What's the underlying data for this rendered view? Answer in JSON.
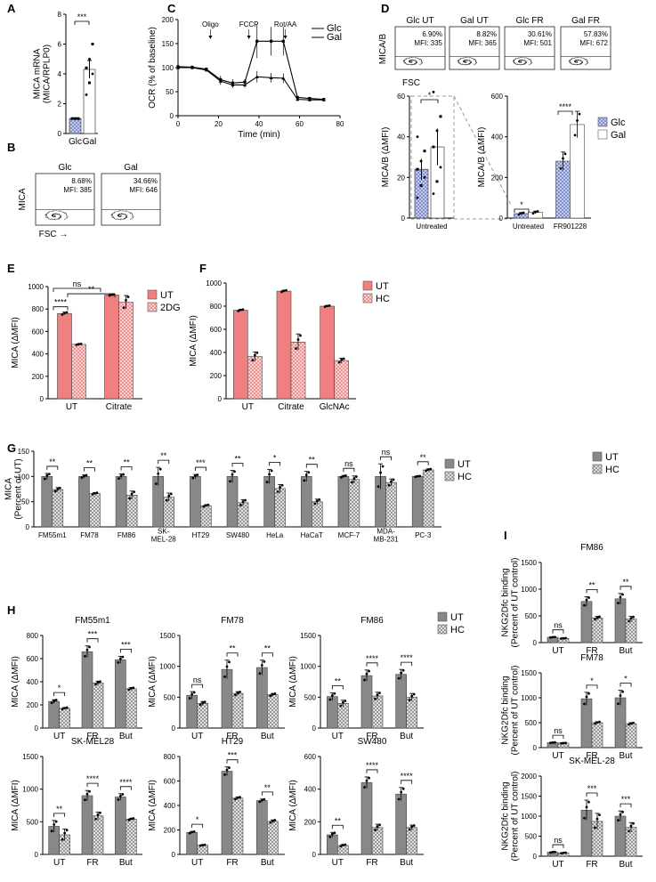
{
  "colors": {
    "red": "#f08080",
    "grey": "#888888",
    "blue": "#a9b4e0",
    "white": "#ffffff",
    "black": "#000000"
  },
  "chart_data": [
    {
      "panel": "A",
      "type": "bar",
      "categories": [
        "Glc",
        "Gal"
      ],
      "values": [
        1.0,
        4.3
      ],
      "errors": [
        0.05,
        0.6
      ],
      "points": [
        [
          1,
          1,
          1,
          1,
          1,
          1
        ],
        [
          2.6,
          3.4,
          4.0,
          4.4,
          5.0,
          6.0
        ]
      ],
      "ylabel": "MICA mRNA\n(MICA/RPLP0)",
      "ylim": [
        0,
        8
      ],
      "yticks": [
        0,
        2,
        4,
        6,
        8
      ],
      "fills": [
        "blue",
        "white"
      ],
      "sig": [
        {
          "from": 0,
          "to": 1,
          "label": "***"
        }
      ]
    },
    {
      "panel": "C",
      "type": "line",
      "x": [
        0,
        7,
        14,
        21,
        27,
        33,
        39,
        46,
        52,
        59,
        65,
        72
      ],
      "series": [
        {
          "name": "Glc",
          "values": [
            102,
            101,
            97,
            75,
            68,
            70,
            155,
            155,
            155,
            38,
            36,
            34
          ],
          "errors": [
            2,
            2,
            3,
            8,
            8,
            6,
            35,
            30,
            30,
            3,
            3,
            3
          ]
        },
        {
          "name": "Gal",
          "values": [
            100,
            100,
            95,
            72,
            64,
            64,
            81,
            79,
            78,
            34,
            33,
            33
          ],
          "errors": [
            2,
            2,
            3,
            8,
            6,
            6,
            12,
            10,
            10,
            3,
            3,
            3
          ]
        }
      ],
      "annotations": [
        {
          "x": 16,
          "label": "Oligo"
        },
        {
          "x": 35,
          "label": "FCCP"
        },
        {
          "x": 53,
          "label": "Rot/AA"
        }
      ],
      "xlabel": "Time (min)",
      "ylabel": "OCR (% of baseline)",
      "xlim": [
        0,
        80
      ],
      "xticks": [
        0,
        20,
        40,
        60,
        80
      ],
      "ylim": [
        0,
        200
      ],
      "yticks": [
        0,
        50,
        100,
        150,
        200
      ],
      "legend": "top-right"
    },
    {
      "panel": "D-left",
      "type": "bar",
      "group_label": "Untreated",
      "categories": [
        "Glc",
        "Gal"
      ],
      "values": [
        24,
        35
      ],
      "errors": [
        5,
        9
      ],
      "points": [
        [
          10,
          16,
          20,
          24,
          28,
          33,
          40
        ],
        [
          12,
          18,
          25,
          35,
          43,
          50,
          62
        ]
      ],
      "ylabel": "MICA/B (ΔMFI)",
      "ylim": [
        0,
        60
      ],
      "yticks": [
        0,
        20,
        40,
        60
      ],
      "fills": [
        "blue",
        "white"
      ],
      "sig": [
        {
          "from": 0,
          "to": 1,
          "label": "*"
        }
      ]
    },
    {
      "panel": "D-right",
      "type": "bar",
      "groups": [
        "Untreated",
        "FR901228"
      ],
      "series": [
        {
          "name": "Glc",
          "values": [
            22,
            280
          ],
          "errors": [
            5,
            45
          ]
        },
        {
          "name": "Gal",
          "values": [
            28,
            460
          ],
          "errors": [
            6,
            65
          ]
        }
      ],
      "ylabel": "MICA/B (ΔMFI)",
      "ylim": [
        0,
        600
      ],
      "yticks": [
        0,
        200,
        400,
        600
      ],
      "fills": [
        "blue",
        "white"
      ],
      "sig": [
        {
          "group": 0,
          "label": "*"
        },
        {
          "group": 1,
          "label": "****"
        }
      ]
    },
    {
      "panel": "E",
      "type": "bar",
      "groups": [
        "UT",
        "Citrate"
      ],
      "series": [
        {
          "name": "UT",
          "values": [
            760,
            925
          ],
          "errors": [
            12,
            6
          ]
        },
        {
          "name": "2DG",
          "values": [
            485,
            860
          ],
          "errors": [
            5,
            60
          ]
        }
      ],
      "ylabel": "MICA (ΔMFI)",
      "ylim": [
        0,
        1000
      ],
      "yticks": [
        0,
        200,
        400,
        600,
        800,
        1000
      ],
      "fills": [
        "red",
        "redhatch"
      ],
      "sig": [
        {
          "label": "****"
        },
        {
          "label": "**"
        },
        {
          "label": "ns"
        }
      ],
      "legend": "top-right"
    },
    {
      "panel": "F",
      "type": "bar",
      "groups": [
        "UT",
        "Citrate",
        "GlcNAc"
      ],
      "series": [
        {
          "name": "UT",
          "values": [
            765,
            930,
            800
          ],
          "errors": [
            8,
            8,
            6
          ]
        },
        {
          "name": "HC",
          "values": [
            365,
            490,
            330
          ],
          "errors": [
            40,
            70,
            20
          ]
        }
      ],
      "ylabel": "MICA (ΔMFI)",
      "ylim": [
        0,
        1000
      ],
      "yticks": [
        0,
        200,
        400,
        600,
        800,
        1000
      ],
      "fills": [
        "red",
        "redhatch"
      ],
      "sig": [
        {
          "label": "***"
        },
        {
          "label": "**"
        },
        {
          "label": "****"
        }
      ],
      "legend": "top-right"
    },
    {
      "panel": "G",
      "type": "bar",
      "groups": [
        "FM55m1",
        "FM78",
        "FM86",
        "SK-\nMEL-28",
        "HT29",
        "SW480",
        "HeLa",
        "HaCaT",
        "MCF-7",
        "MDA-\nMB-231",
        "PC-3"
      ],
      "series": [
        {
          "name": "UT",
          "values": [
            100,
            100,
            100,
            100,
            100,
            100,
            100,
            100,
            100,
            100,
            100
          ],
          "errors": [
            6,
            3,
            5,
            18,
            4,
            12,
            14,
            10,
            2,
            25,
            1
          ]
        },
        {
          "name": "HC",
          "values": [
            74,
            66,
            63,
            59,
            42,
            48,
            76,
            50,
            94,
            88,
            113
          ],
          "errors": [
            4,
            2,
            8,
            8,
            2,
            6,
            8,
            5,
            7,
            7,
            2
          ]
        }
      ],
      "ylabel": "MICA\n(Percent of UT)",
      "ylim": [
        0,
        150
      ],
      "yticks": [
        0,
        50,
        100,
        150
      ],
      "fills": [
        "grey",
        "greyhatch"
      ],
      "sig": [
        "**",
        "**",
        "**",
        "**",
        "***",
        "**",
        "*",
        "**",
        "ns",
        "ns",
        "**"
      ],
      "legend": "top-right"
    },
    {
      "panel": "H1",
      "type": "bar",
      "title": "FM55m1",
      "groups": [
        "UT",
        "FR",
        "But"
      ],
      "series": [
        {
          "name": "UT",
          "values": [
            230,
            660,
            590
          ],
          "errors": [
            15,
            50,
            30
          ]
        },
        {
          "name": "HC",
          "values": [
            170,
            390,
            340
          ],
          "errors": [
            8,
            15,
            10
          ]
        }
      ],
      "ylabel": "MICA (ΔMFI)",
      "ylim": [
        0,
        800
      ],
      "yticks": [
        0,
        200,
        400,
        600,
        800
      ],
      "fills": [
        "grey",
        "greyhatch"
      ],
      "sig": [
        "*",
        "***",
        "***"
      ]
    },
    {
      "panel": "H2",
      "type": "bar",
      "title": "FM78",
      "groups": [
        "UT",
        "FR",
        "But"
      ],
      "series": [
        {
          "name": "UT",
          "values": [
            530,
            950,
            980
          ],
          "errors": [
            60,
            150,
            120
          ]
        },
        {
          "name": "HC",
          "values": [
            400,
            560,
            540
          ],
          "errors": [
            30,
            30,
            20
          ]
        }
      ],
      "ylabel": "MICA (ΔMFI)",
      "ylim": [
        0,
        1500
      ],
      "yticks": [
        0,
        500,
        1000,
        1500
      ],
      "fills": [
        "grey",
        "greyhatch"
      ],
      "sig": [
        "ns",
        "**",
        "**"
      ]
    },
    {
      "panel": "H3",
      "type": "bar",
      "title": "FM86",
      "groups": [
        "UT",
        "FR",
        "But"
      ],
      "series": [
        {
          "name": "UT",
          "values": [
            510,
            850,
            870
          ],
          "errors": [
            60,
            90,
            80
          ]
        },
        {
          "name": "HC",
          "values": [
            400,
            520,
            500
          ],
          "errors": [
            50,
            60,
            60
          ]
        }
      ],
      "ylabel": "MICA (ΔMFI)",
      "ylim": [
        0,
        1500
      ],
      "yticks": [
        0,
        500,
        1000,
        1500
      ],
      "fills": [
        "grey",
        "greyhatch"
      ],
      "sig": [
        "**",
        "****",
        "****"
      ]
    },
    {
      "panel": "H4",
      "type": "bar",
      "title": "SK-MEL28",
      "groups": [
        "UT",
        "FR",
        "But"
      ],
      "series": [
        {
          "name": "UT",
          "values": [
            430,
            900,
            880
          ],
          "errors": [
            90,
            80,
            50
          ]
        },
        {
          "name": "HC",
          "values": [
            300,
            590,
            540
          ],
          "errors": [
            90,
            60,
            15
          ]
        }
      ],
      "ylabel": "MICA (ΔMFI)",
      "ylim": [
        0,
        1500
      ],
      "yticks": [
        0,
        500,
        1000,
        1500
      ],
      "fills": [
        "grey",
        "greyhatch"
      ],
      "sig": [
        "**",
        "****",
        "****"
      ]
    },
    {
      "panel": "H5",
      "type": "bar",
      "title": "HT29",
      "groups": [
        "UT",
        "FR",
        "But"
      ],
      "series": [
        {
          "name": "UT",
          "values": [
            180,
            680,
            440
          ],
          "errors": [
            8,
            35,
            12
          ]
        },
        {
          "name": "HC",
          "values": [
            75,
            460,
            270
          ],
          "errors": [
            4,
            10,
            12
          ]
        }
      ],
      "ylabel": "MICA (ΔMFI)",
      "ylim": [
        0,
        800
      ],
      "yticks": [
        0,
        200,
        400,
        600,
        800
      ],
      "fills": [
        "grey",
        "greyhatch"
      ],
      "sig": [
        "*",
        "***",
        "**"
      ]
    },
    {
      "panel": "H6",
      "type": "bar",
      "title": "SW480",
      "groups": [
        "UT",
        "FR",
        "But"
      ],
      "series": [
        {
          "name": "UT",
          "values": [
            120,
            440,
            370
          ],
          "errors": [
            15,
            35,
            40
          ]
        },
        {
          "name": "HC",
          "values": [
            55,
            165,
            165
          ],
          "errors": [
            6,
            20,
            15
          ]
        }
      ],
      "ylabel": "MICA (ΔMFI)",
      "ylim": [
        0,
        600
      ],
      "yticks": [
        0,
        200,
        400,
        600
      ],
      "fills": [
        "grey",
        "greyhatch"
      ],
      "sig": [
        "**",
        "****",
        "****"
      ]
    },
    {
      "panel": "I1",
      "type": "bar",
      "title": "FM86",
      "groups": [
        "UT",
        "FR",
        "But"
      ],
      "series": [
        {
          "name": "UT",
          "values": [
            100,
            770,
            820
          ],
          "errors": [
            5,
            90,
            100
          ]
        },
        {
          "name": "HC",
          "values": [
            80,
            460,
            440
          ],
          "errors": [
            5,
            30,
            50
          ]
        }
      ],
      "ylabel": "NKG2Dfc binding\n(Percent of UT control)",
      "ylim": [
        0,
        1500
      ],
      "yticks": [
        0,
        500,
        1000,
        1500
      ],
      "fills": [
        "grey",
        "greyhatch"
      ],
      "sig": [
        "ns",
        "**",
        "**"
      ]
    },
    {
      "panel": "I2",
      "type": "bar",
      "title": "FM78",
      "groups": [
        "UT",
        "FR",
        "But"
      ],
      "series": [
        {
          "name": "UT",
          "values": [
            100,
            980,
            1000
          ],
          "errors": [
            5,
            130,
            150
          ]
        },
        {
          "name": "HC",
          "values": [
            90,
            500,
            480
          ],
          "errors": [
            5,
            20,
            20
          ]
        }
      ],
      "ylabel": "NKG2Dfc binding\n(Percent of UT control)",
      "ylim": [
        0,
        1500
      ],
      "yticks": [
        0,
        500,
        1000,
        1500
      ],
      "fills": [
        "grey",
        "greyhatch"
      ],
      "sig": [
        "ns",
        "*",
        "*"
      ]
    },
    {
      "panel": "I3",
      "type": "bar",
      "title": "SK-MEL-28",
      "groups": [
        "UT",
        "FR",
        "But"
      ],
      "series": [
        {
          "name": "UT",
          "values": [
            100,
            1150,
            1000
          ],
          "errors": [
            10,
            250,
            130
          ]
        },
        {
          "name": "HC",
          "values": [
            80,
            870,
            720
          ],
          "errors": [
            10,
            200,
            120
          ]
        }
      ],
      "ylabel": "NKG2Dfc binding\n(Percent of UT control)",
      "ylim": [
        0,
        2000
      ],
      "yticks": [
        0,
        500,
        1000,
        1500,
        2000
      ],
      "fills": [
        "grey",
        "greyhatch"
      ],
      "sig": [
        "ns",
        "***",
        "***"
      ]
    }
  ],
  "flow": {
    "B": {
      "ylabel": "MICA",
      "xlabel": "FSC →",
      "plots": [
        {
          "title": "Glc",
          "pct": "8.68%",
          "mfi": "MFI: 385"
        },
        {
          "title": "Gal",
          "pct": "34.66%",
          "mfi": "MFI: 646"
        }
      ]
    },
    "D": {
      "ylabel": "MICA/B",
      "xlabel": "FSC",
      "plots": [
        {
          "title": "Glc UT",
          "pct": "6.90%",
          "mfi": "MFI: 335"
        },
        {
          "title": "Gal UT",
          "pct": "8.82%",
          "mfi": "MFI: 365"
        },
        {
          "title": "Glc FR",
          "pct": "30.61%",
          "mfi": "MFI: 501"
        },
        {
          "title": "Gal FR",
          "pct": "57.83%",
          "mfi": "MFI: 672"
        }
      ]
    }
  },
  "legends": {
    "D": [
      "Glc",
      "Gal"
    ],
    "E": [
      "UT",
      "2DG"
    ],
    "F": [
      "UT",
      "HC"
    ],
    "G": [
      "UT",
      "HC"
    ],
    "H": [
      "UT",
      "HC"
    ],
    "I": [
      "UT",
      "HC"
    ]
  },
  "panel_labels": [
    "A",
    "B",
    "C",
    "D",
    "E",
    "F",
    "G",
    "H",
    "I"
  ]
}
